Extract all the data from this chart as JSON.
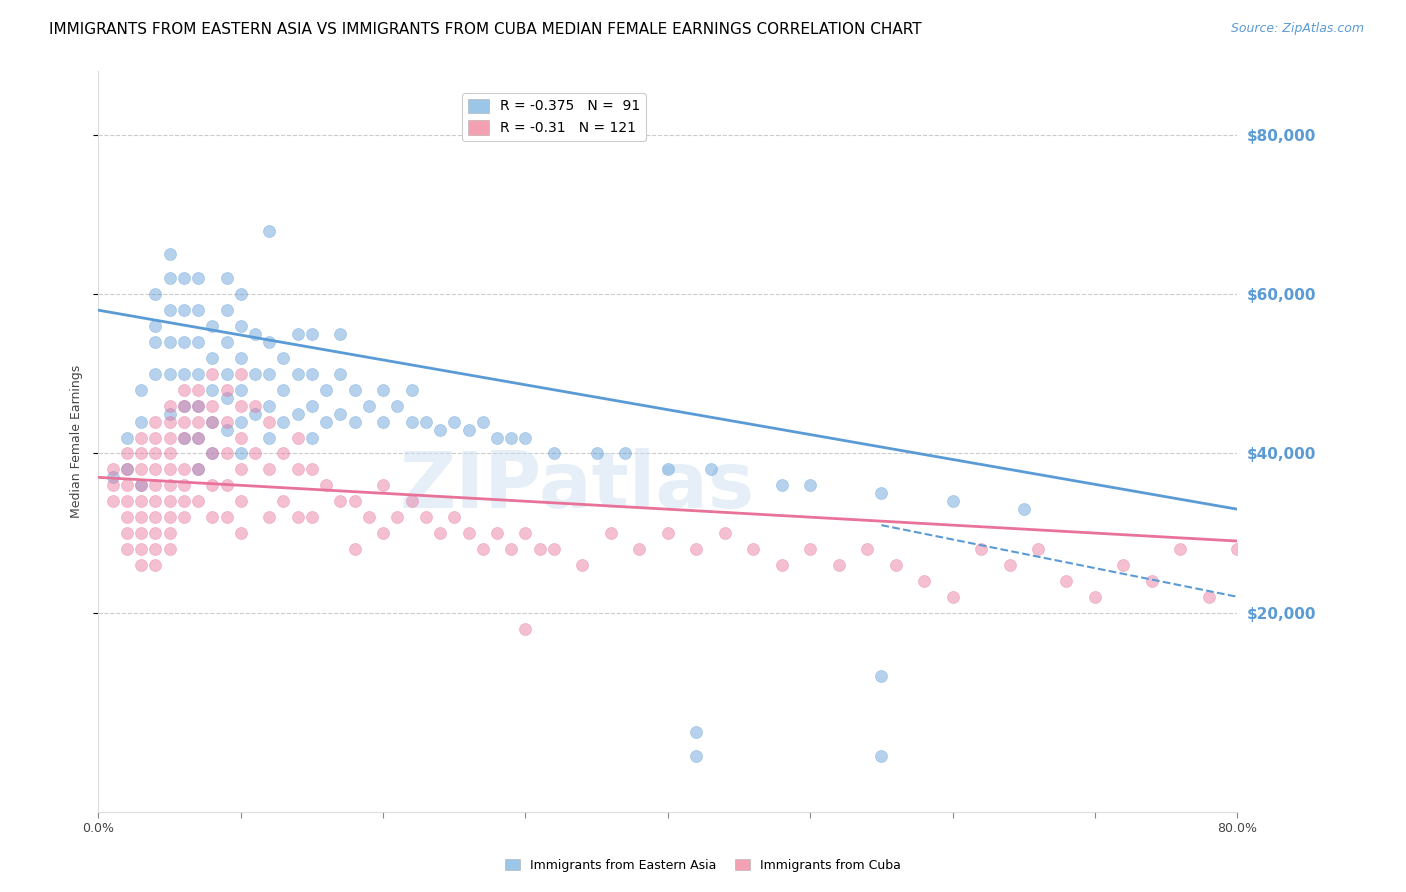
{
  "title": "IMMIGRANTS FROM EASTERN ASIA VS IMMIGRANTS FROM CUBA MEDIAN FEMALE EARNINGS CORRELATION CHART",
  "source": "Source: ZipAtlas.com",
  "ylabel": "Median Female Earnings",
  "yticks": [
    20000,
    40000,
    60000,
    80000
  ],
  "ytick_labels": [
    "$20,000",
    "$40,000",
    "$60,000",
    "$80,000"
  ],
  "xlim": [
    0.0,
    0.8
  ],
  "ylim": [
    -5000,
    88000
  ],
  "legend_entries": [
    {
      "label": "Immigrants from Eastern Asia",
      "R": -0.375,
      "N": 91,
      "color": "#7ab3e0"
    },
    {
      "label": "Immigrants from Cuba",
      "R": -0.31,
      "N": 121,
      "color": "#f0829a"
    }
  ],
  "blue_scatter": {
    "x": [
      0.01,
      0.02,
      0.02,
      0.03,
      0.03,
      0.03,
      0.04,
      0.04,
      0.04,
      0.04,
      0.05,
      0.05,
      0.05,
      0.05,
      0.05,
      0.05,
      0.06,
      0.06,
      0.06,
      0.06,
      0.06,
      0.06,
      0.07,
      0.07,
      0.07,
      0.07,
      0.07,
      0.07,
      0.07,
      0.08,
      0.08,
      0.08,
      0.08,
      0.08,
      0.09,
      0.09,
      0.09,
      0.09,
      0.09,
      0.09,
      0.1,
      0.1,
      0.1,
      0.1,
      0.1,
      0.1,
      0.11,
      0.11,
      0.11,
      0.12,
      0.12,
      0.12,
      0.12,
      0.12,
      0.13,
      0.13,
      0.13,
      0.14,
      0.14,
      0.14,
      0.15,
      0.15,
      0.15,
      0.15,
      0.16,
      0.16,
      0.17,
      0.17,
      0.17,
      0.18,
      0.18,
      0.19,
      0.2,
      0.2,
      0.21,
      0.22,
      0.22,
      0.23,
      0.24,
      0.25,
      0.26,
      0.27,
      0.28,
      0.29,
      0.3,
      0.32,
      0.35,
      0.37,
      0.4,
      0.43,
      0.48,
      0.5,
      0.55,
      0.6,
      0.65
    ],
    "y": [
      37000,
      38000,
      42000,
      36000,
      44000,
      48000,
      50000,
      54000,
      56000,
      60000,
      45000,
      50000,
      54000,
      58000,
      62000,
      65000,
      42000,
      46000,
      50000,
      54000,
      58000,
      62000,
      38000,
      42000,
      46000,
      50000,
      54000,
      58000,
      62000,
      40000,
      44000,
      48000,
      52000,
      56000,
      43000,
      47000,
      50000,
      54000,
      58000,
      62000,
      40000,
      44000,
      48000,
      52000,
      56000,
      60000,
      45000,
      50000,
      55000,
      42000,
      46000,
      50000,
      54000,
      68000,
      44000,
      48000,
      52000,
      45000,
      50000,
      55000,
      42000,
      46000,
      50000,
      55000,
      44000,
      48000,
      45000,
      50000,
      55000,
      44000,
      48000,
      46000,
      44000,
      48000,
      46000,
      44000,
      48000,
      44000,
      43000,
      44000,
      43000,
      44000,
      42000,
      42000,
      42000,
      40000,
      40000,
      40000,
      38000,
      38000,
      36000,
      36000,
      35000,
      34000,
      33000
    ]
  },
  "blue_outliers": {
    "x": [
      0.42,
      0.42,
      0.55,
      0.55
    ],
    "y": [
      5000,
      2000,
      12000,
      2000
    ]
  },
  "pink_scatter": {
    "x": [
      0.01,
      0.01,
      0.01,
      0.02,
      0.02,
      0.02,
      0.02,
      0.02,
      0.02,
      0.02,
      0.03,
      0.03,
      0.03,
      0.03,
      0.03,
      0.03,
      0.03,
      0.03,
      0.03,
      0.04,
      0.04,
      0.04,
      0.04,
      0.04,
      0.04,
      0.04,
      0.04,
      0.04,
      0.04,
      0.05,
      0.05,
      0.05,
      0.05,
      0.05,
      0.05,
      0.05,
      0.05,
      0.05,
      0.05,
      0.06,
      0.06,
      0.06,
      0.06,
      0.06,
      0.06,
      0.06,
      0.06,
      0.07,
      0.07,
      0.07,
      0.07,
      0.07,
      0.07,
      0.08,
      0.08,
      0.08,
      0.08,
      0.08,
      0.08,
      0.09,
      0.09,
      0.09,
      0.09,
      0.09,
      0.1,
      0.1,
      0.1,
      0.1,
      0.1,
      0.1,
      0.11,
      0.11,
      0.12,
      0.12,
      0.12,
      0.13,
      0.13,
      0.14,
      0.14,
      0.14,
      0.15,
      0.15,
      0.16,
      0.17,
      0.18,
      0.18,
      0.19,
      0.2,
      0.2,
      0.21,
      0.22,
      0.23,
      0.24,
      0.25,
      0.26,
      0.27,
      0.28,
      0.29,
      0.3,
      0.31,
      0.32,
      0.34,
      0.36,
      0.38,
      0.4,
      0.42,
      0.44,
      0.46,
      0.48,
      0.5,
      0.52,
      0.54,
      0.56,
      0.58,
      0.6,
      0.62,
      0.64,
      0.66,
      0.68,
      0.7,
      0.72,
      0.74,
      0.76,
      0.78,
      0.8
    ],
    "y": [
      38000,
      36000,
      34000,
      40000,
      38000,
      36000,
      34000,
      32000,
      30000,
      28000,
      42000,
      40000,
      38000,
      36000,
      34000,
      32000,
      30000,
      28000,
      26000,
      44000,
      42000,
      40000,
      38000,
      36000,
      34000,
      32000,
      30000,
      28000,
      26000,
      46000,
      44000,
      42000,
      40000,
      38000,
      36000,
      34000,
      32000,
      30000,
      28000,
      48000,
      46000,
      44000,
      42000,
      38000,
      36000,
      34000,
      32000,
      48000,
      46000,
      44000,
      42000,
      38000,
      34000,
      50000,
      46000,
      44000,
      40000,
      36000,
      32000,
      48000,
      44000,
      40000,
      36000,
      32000,
      50000,
      46000,
      42000,
      38000,
      34000,
      30000,
      46000,
      40000,
      44000,
      38000,
      32000,
      40000,
      34000,
      42000,
      38000,
      32000,
      38000,
      32000,
      36000,
      34000,
      34000,
      28000,
      32000,
      36000,
      30000,
      32000,
      34000,
      32000,
      30000,
      32000,
      30000,
      28000,
      30000,
      28000,
      30000,
      28000,
      28000,
      26000,
      30000,
      28000,
      30000,
      28000,
      30000,
      28000,
      26000,
      28000,
      26000,
      28000,
      26000,
      24000,
      22000,
      28000,
      26000,
      28000,
      24000,
      22000,
      26000,
      24000,
      28000,
      22000,
      28000
    ]
  },
  "pink_outlier": {
    "x": [
      0.3
    ],
    "y": [
      18000
    ]
  },
  "blue_line": {
    "x0": 0.0,
    "y0": 58000,
    "x1": 0.8,
    "y1": 33000
  },
  "pink_line": {
    "x0": 0.0,
    "y0": 37000,
    "x1": 0.8,
    "y1": 29000
  },
  "blue_dash_line": {
    "x0": 0.55,
    "y0": 31000,
    "x1": 0.8,
    "y1": 22000
  },
  "watermark": "ZIPatlas",
  "scatter_alpha": 0.45,
  "scatter_size": 75,
  "marker": "o",
  "blue_color": "#5b9bd5",
  "pink_color": "#e87298",
  "legend_blue_color": "#7ab3e0",
  "legend_pink_color": "#f0829a",
  "title_fontsize": 11,
  "source_fontsize": 9,
  "axis_label_fontsize": 9,
  "tick_label_fontsize": 9,
  "legend_fontsize": 10,
  "background_color": "#ffffff",
  "grid_color": "#cccccc",
  "grid_style": "--",
  "right_ytick_color": "#5b9bd5"
}
